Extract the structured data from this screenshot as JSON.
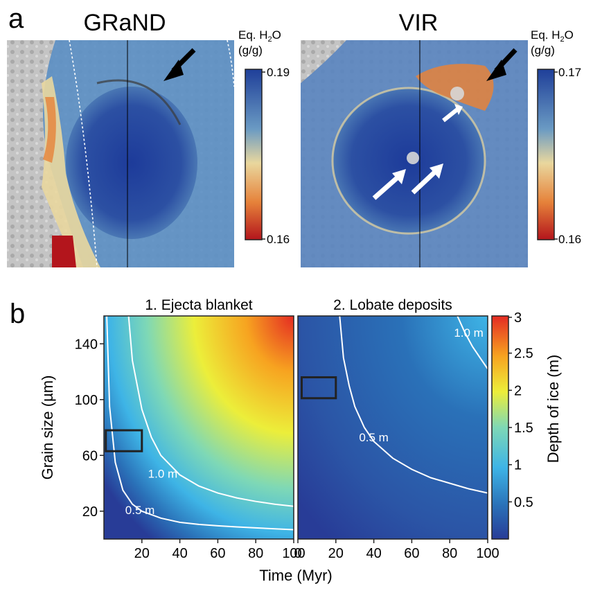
{
  "panel_a": {
    "label": "a",
    "left_map": {
      "title": "GRaND",
      "colorbar": {
        "label_line1": "Eq. H",
        "label_sub": "2",
        "label_tail": "O",
        "label_line2": "(g/g)",
        "max": "0.19",
        "min": "0.16"
      }
    },
    "right_map": {
      "title": "VIR",
      "colorbar": {
        "label_line1": "Eq. H",
        "label_sub": "2",
        "label_tail": "O",
        "label_line2": "(g/g)",
        "max": "0.17",
        "min": "0.16"
      }
    },
    "colors": {
      "map_low": "#b3151c",
      "map_mid": "#e9d79e",
      "map_high": "#1f3f99"
    }
  },
  "panel_b": {
    "label": "b",
    "colors": {
      "c0": "#283c97",
      "c1": "#2a71b8",
      "c2": "#3eb4e6",
      "c3": "#7ed8b6",
      "c4": "#ecee3a",
      "c5": "#f7a320",
      "c6": "#e42b23",
      "contour": "#ffffff",
      "box": "#222222"
    }
  },
  "chart_data": [
    {
      "type": "heatmap",
      "title": "1. Ejecta blanket",
      "xlabel": "Time (Myr)",
      "ylabel": "Grain size (µm)",
      "xlim": [
        0,
        100
      ],
      "ylim": [
        0,
        160
      ],
      "x_ticks": [
        "20",
        "40",
        "60",
        "80",
        "100"
      ],
      "y_ticks": [
        "20",
        "60",
        "100",
        "140"
      ],
      "contours": [
        {
          "label": "0.5 m",
          "level": 0.5,
          "x": [
            1.5,
            3,
            6,
            10,
            15,
            20,
            30,
            40,
            50,
            60,
            70,
            80,
            90,
            100
          ],
          "y": [
            160,
            95,
            55,
            35,
            25,
            20,
            15,
            12,
            10.5,
            9.5,
            8.7,
            8,
            7.3,
            6.7
          ]
        },
        {
          "label": "1.0 m",
          "level": 1.0,
          "x": [
            13,
            15,
            20,
            25,
            30,
            40,
            50,
            60,
            70,
            80,
            90,
            100
          ],
          "y": [
            160,
            128,
            93,
            73,
            60,
            46,
            38,
            33,
            29.5,
            27,
            25,
            23.5
          ]
        }
      ],
      "box": {
        "x": [
          1,
          20
        ],
        "y": [
          63,
          78
        ]
      }
    },
    {
      "type": "heatmap",
      "title": "2. Lobate deposits",
      "xlabel": "Time (Myr)",
      "ylabel": "",
      "xlim": [
        0,
        100
      ],
      "ylim": [
        0,
        160
      ],
      "x_ticks": [
        "0",
        "20",
        "40",
        "60",
        "80",
        "100"
      ],
      "y_ticks": [],
      "contours": [
        {
          "label": "0.5 m",
          "level": 0.5,
          "x": [
            22,
            24,
            27,
            30,
            35,
            40,
            50,
            60,
            70,
            80,
            90,
            100
          ],
          "y": [
            160,
            130,
            110,
            95,
            80,
            70,
            58,
            50,
            44,
            40,
            36,
            33
          ]
        },
        {
          "label": "1.0 m",
          "level": 1.0,
          "x": [
            84,
            88,
            92,
            96,
            100
          ],
          "y": [
            160,
            148,
            138,
            130,
            122
          ]
        }
      ],
      "box": {
        "x": [
          2,
          20
        ],
        "y": [
          101,
          116
        ]
      }
    },
    {
      "type": "colorbar",
      "label": "Depth of ice (m)",
      "range": [
        0,
        3
      ],
      "ticks": [
        "0.5",
        "1",
        "1.5",
        "2",
        "2.5",
        "3"
      ]
    }
  ]
}
